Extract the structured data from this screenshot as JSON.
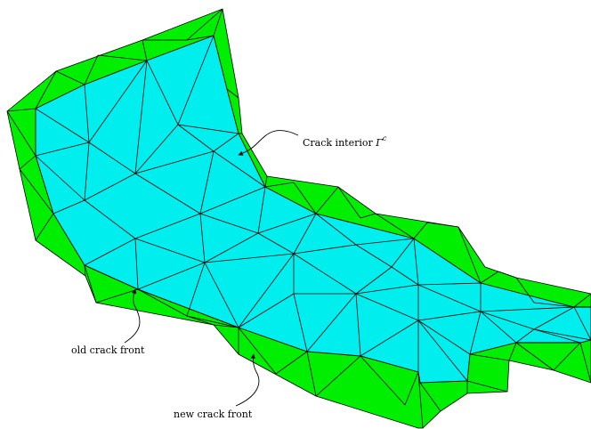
{
  "labels": {
    "crack_interior": "Crack interior",
    "crack_symbol": "Γ",
    "crack_superscript": "c",
    "old_front": "old crack front",
    "new_front": "new crack front"
  }
}
